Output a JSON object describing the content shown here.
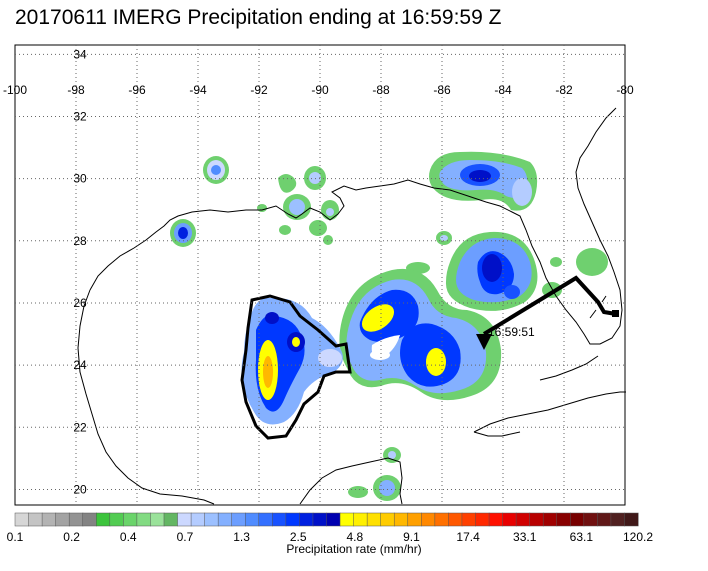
{
  "title": "20170611 IMERG Precipitation ending at 16:59:59 Z",
  "map": {
    "lon_ticks": [
      "-100",
      "-98",
      "-96",
      "-94",
      "-92",
      "-90",
      "-88",
      "-86",
      "-84",
      "-82",
      "-80"
    ],
    "lat_ticks": [
      "34",
      "32",
      "30",
      "28",
      "26",
      "24",
      "22",
      "20"
    ],
    "lon_range": [
      -100,
      -80
    ],
    "lat_range": [
      19.5,
      34.3
    ],
    "grid": true,
    "track_time_label": "16:59:51"
  },
  "colorbar": {
    "label": "Precipitation rate (mm/hr)",
    "tick_labels": [
      "0.1",
      "0.2",
      "0.4",
      "0.7",
      "1.3",
      "2.5",
      "4.8",
      "9.1",
      "17.4",
      "33.1",
      "63.1",
      "120.2"
    ],
    "colors": [
      "#d6d6d6",
      "#c4c4c4",
      "#b3b3b3",
      "#a3a3a3",
      "#939393",
      "#838383",
      "#3cc43c",
      "#52cc52",
      "#6ad46a",
      "#82db82",
      "#9ae29a",
      "#63b663",
      "#ccd8ff",
      "#b4ccff",
      "#9cc0ff",
      "#84b0ff",
      "#6c9eff",
      "#508cff",
      "#3470ff",
      "#1852ff",
      "#0038ff",
      "#0020e0",
      "#0010c8",
      "#0000b0",
      "#ffff00",
      "#fff000",
      "#ffe000",
      "#ffcc00",
      "#ffb800",
      "#ffa000",
      "#ff8800",
      "#ff7000",
      "#ff5800",
      "#ff4000",
      "#ff2800",
      "#ff1000",
      "#e80000",
      "#d00000",
      "#b80000",
      "#a00000",
      "#880000",
      "#780000",
      "#701010",
      "#601818",
      "#502020",
      "#401818"
    ]
  }
}
